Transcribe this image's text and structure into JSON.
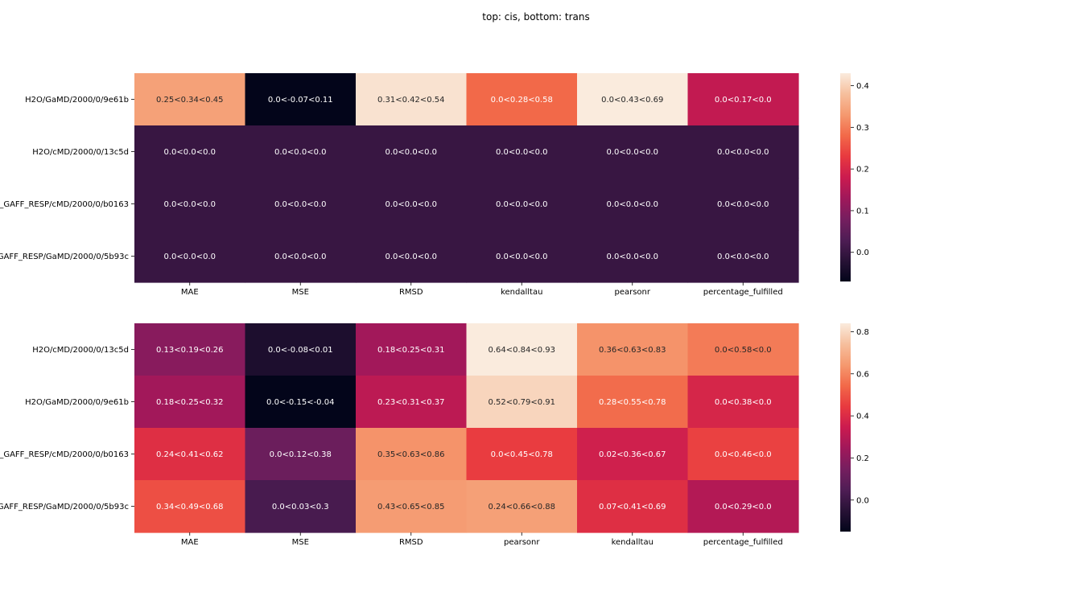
{
  "figure": {
    "title": "top: cis, bottom: trans"
  },
  "chart_data": [
    {
      "type": "heatmap",
      "title": "",
      "xlabel": "",
      "ylabel": "",
      "columns": [
        "MAE",
        "MSE",
        "RMSD",
        "kendalltau",
        "pearsonr",
        "percentage_fulfilled"
      ],
      "rows": [
        "H2O/GaMD/2000/0/9e61b",
        "H2O/cMD/2000/0/13c5d",
        "_GAFF_RESP/cMD/2000/0/b0163",
        "GAFF_RESP/GaMD/2000/0/5b93c"
      ],
      "values": [
        [
          0.34,
          -0.07,
          0.42,
          0.28,
          0.43,
          0.17
        ],
        [
          0.0,
          0.0,
          0.0,
          0.0,
          0.0,
          0.0
        ],
        [
          0.0,
          0.0,
          0.0,
          0.0,
          0.0,
          0.0
        ],
        [
          0.0,
          0.0,
          0.0,
          0.0,
          0.0,
          0.0
        ]
      ],
      "annotations": [
        [
          "0.25<0.34<0.45",
          "0.0<-0.07<0.11",
          "0.31<0.42<0.54",
          "0.0<0.28<0.58",
          "0.0<0.43<0.69",
          "0.0<0.17<0.0"
        ],
        [
          "0.0<0.0<0.0",
          "0.0<0.0<0.0",
          "0.0<0.0<0.0",
          "0.0<0.0<0.0",
          "0.0<0.0<0.0",
          "0.0<0.0<0.0"
        ],
        [
          "0.0<0.0<0.0",
          "0.0<0.0<0.0",
          "0.0<0.0<0.0",
          "0.0<0.0<0.0",
          "0.0<0.0<0.0",
          "0.0<0.0<0.0"
        ],
        [
          "0.0<0.0<0.0",
          "0.0<0.0<0.0",
          "0.0<0.0<0.0",
          "0.0<0.0<0.0",
          "0.0<0.0<0.0",
          "0.0<0.0<0.0"
        ]
      ],
      "colorbar": {
        "min": -0.07,
        "max": 0.43,
        "ticks": [
          0.0,
          0.1,
          0.2,
          0.3,
          0.4
        ],
        "tick_labels": [
          "0.0",
          "0.1",
          "0.2",
          "0.3",
          "0.4"
        ]
      },
      "colormap": "rocket"
    },
    {
      "type": "heatmap",
      "title": "",
      "xlabel": "",
      "ylabel": "",
      "columns": [
        "MAE",
        "MSE",
        "RMSD",
        "pearsonr",
        "kendalltau",
        "percentage_fulfilled"
      ],
      "rows": [
        "H2O/cMD/2000/0/13c5d",
        "H2O/GaMD/2000/0/9e61b",
        "_GAFF_RESP/cMD/2000/0/b0163",
        "GAFF_RESP/GaMD/2000/0/5b93c"
      ],
      "values": [
        [
          0.19,
          -0.08,
          0.25,
          0.84,
          0.63,
          0.58
        ],
        [
          0.25,
          -0.15,
          0.31,
          0.79,
          0.55,
          0.38
        ],
        [
          0.41,
          0.12,
          0.63,
          0.45,
          0.36,
          0.46
        ],
        [
          0.49,
          0.03,
          0.65,
          0.66,
          0.41,
          0.29
        ]
      ],
      "annotations": [
        [
          "0.13<0.19<0.26",
          "0.0<-0.08<0.01",
          "0.18<0.25<0.31",
          "0.64<0.84<0.93",
          "0.36<0.63<0.83",
          "0.0<0.58<0.0"
        ],
        [
          "0.18<0.25<0.32",
          "0.0<-0.15<-0.04",
          "0.23<0.31<0.37",
          "0.52<0.79<0.91",
          "0.28<0.55<0.78",
          "0.0<0.38<0.0"
        ],
        [
          "0.24<0.41<0.62",
          "0.0<0.12<0.38",
          "0.35<0.63<0.86",
          "0.0<0.45<0.78",
          "0.02<0.36<0.67",
          "0.0<0.46<0.0"
        ],
        [
          "0.34<0.49<0.68",
          "0.0<0.03<0.3",
          "0.43<0.65<0.85",
          "0.24<0.66<0.88",
          "0.07<0.41<0.69",
          "0.0<0.29<0.0"
        ]
      ],
      "colorbar": {
        "min": -0.15,
        "max": 0.84,
        "ticks": [
          0.0,
          0.2,
          0.4,
          0.6,
          0.8
        ],
        "tick_labels": [
          "0.0",
          "0.2",
          "0.4",
          "0.6",
          "0.8"
        ]
      },
      "colormap": "rocket"
    }
  ]
}
